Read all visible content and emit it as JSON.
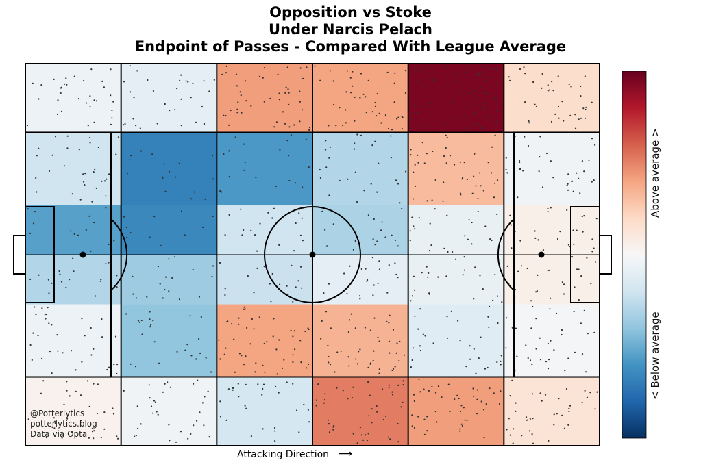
{
  "titles": {
    "line1": "Opposition vs Stoke",
    "line2": "Under Narcis Pelach",
    "line3": "Endpoint of Passes - Compared With League Average"
  },
  "credits": {
    "line1": "@Potterlytics",
    "line2": "potterlytics.blog",
    "line3": "Data via Opta"
  },
  "attacking_direction": {
    "label": "Attacking Direction",
    "arrow": "⟶"
  },
  "colorbar": {
    "above_label": "Above average >",
    "below_label": "< Below average",
    "colormap": [
      "#053061",
      "#2166ac",
      "#4393c3",
      "#92c5de",
      "#d1e5f0",
      "#f7f7f7",
      "#fddbc7",
      "#f4a582",
      "#d6604d",
      "#b2182b",
      "#67001f"
    ]
  },
  "chart_data": {
    "type": "heatmap",
    "value_meaning": "relative to league average, -1 (well below) to +1 (well above)",
    "columns": 6,
    "row_boundaries": [
      0,
      18,
      37,
      50,
      63,
      82,
      100
    ],
    "rows": [
      {
        "zone": "top",
        "values": [
          -0.06,
          -0.1,
          0.42,
          0.4,
          0.95,
          0.18
        ]
      },
      {
        "zone": "upper-channel",
        "values": [
          -0.2,
          -0.68,
          -0.58,
          -0.3,
          0.32,
          -0.04
        ]
      },
      {
        "zone": "upper-box",
        "values": [
          -0.55,
          -0.65,
          -0.2,
          -0.32,
          -0.08,
          0.06
        ]
      },
      {
        "zone": "lower-box",
        "values": [
          -0.3,
          -0.36,
          -0.22,
          -0.1,
          -0.08,
          0.06
        ]
      },
      {
        "zone": "lower-channel",
        "values": [
          -0.06,
          -0.4,
          0.4,
          0.35,
          -0.12,
          -0.02
        ]
      },
      {
        "zone": "bottom",
        "values": [
          0.04,
          -0.04,
          -0.18,
          0.52,
          0.42,
          0.14
        ]
      }
    ],
    "pass_dot_color": "#333333"
  }
}
